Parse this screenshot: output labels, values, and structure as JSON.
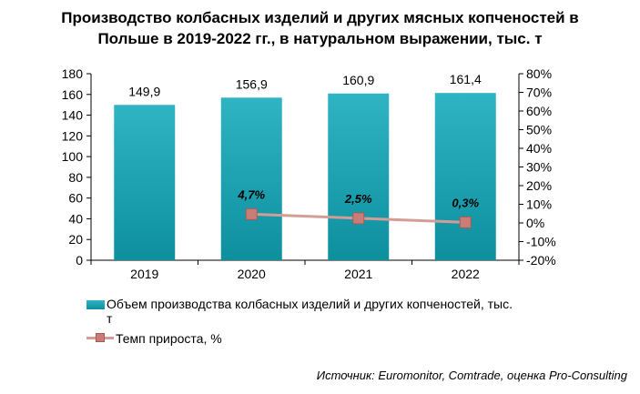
{
  "title_line1": "Производство колбасных изделий и других мясных копченостей в",
  "title_line2": "Польше в 2019-2022 гг., в натуральном выражении, тыс. т",
  "source": "Источник: Euromonitor, Comtrade, оценка Pro-Consulting",
  "colors": {
    "bar_top": "#2fb4c4",
    "bar_bottom": "#0d8f9e",
    "line": "#d39d95",
    "marker": "#c87d76"
  },
  "chart_data": {
    "type": "bar",
    "categories": [
      "2019",
      "2020",
      "2021",
      "2022"
    ],
    "series": [
      {
        "name": "Объем производства колбасных изделий и других копченостей, тыс. т",
        "type": "bar",
        "axis": "left",
        "values": [
          149.9,
          156.9,
          160.9,
          161.4
        ],
        "labels": [
          "149,9",
          "156,9",
          "160,9",
          "161,4"
        ]
      },
      {
        "name": "Темп прироста, %",
        "type": "line",
        "axis": "right",
        "values": [
          null,
          4.7,
          2.5,
          0.3
        ],
        "labels": [
          "",
          "4,7%",
          "2,5%",
          "0,3%"
        ]
      }
    ],
    "y_left": {
      "min": 0,
      "max": 180,
      "step": 20,
      "tick_labels": [
        "0",
        "20",
        "40",
        "60",
        "80",
        "100",
        "120",
        "140",
        "160",
        "180"
      ]
    },
    "y_right": {
      "min": -20,
      "max": 80,
      "step": 10,
      "tick_labels": [
        "-20%",
        "-10%",
        "0%",
        "10%",
        "20%",
        "30%",
        "40%",
        "50%",
        "60%",
        "70%",
        "80%"
      ]
    },
    "grid": false,
    "legend_position": "bottom-left"
  },
  "legend": {
    "bar_label_line1": "Объем производства колбасных изделий и других копченостей, тыс.",
    "bar_label_line2": "т",
    "line_label": "Темп прироста, %"
  }
}
